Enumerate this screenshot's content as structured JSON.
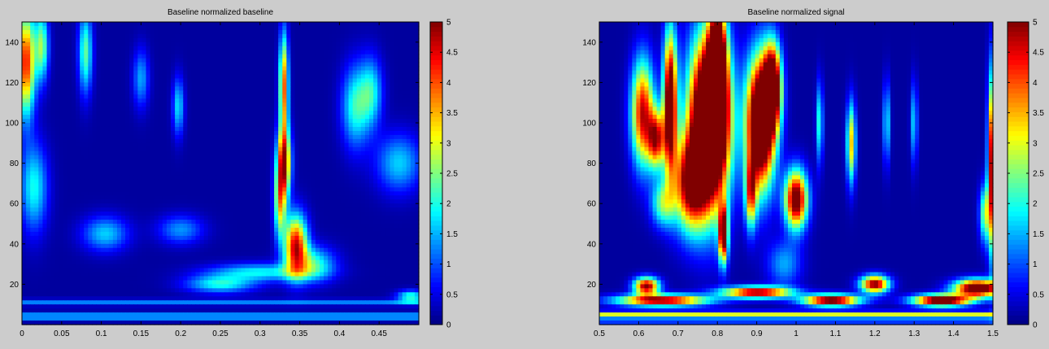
{
  "chart_data": [
    {
      "type": "heatmap",
      "title": "Baseline normalized baseline",
      "xlabel": "",
      "ylabel": "",
      "xlim": [
        0,
        0.5
      ],
      "ylim": [
        0,
        150
      ],
      "xticks": [
        0,
        0.05,
        0.1,
        0.15,
        0.2,
        0.25,
        0.3,
        0.35,
        0.4,
        0.45
      ],
      "xtick_labels": [
        "0",
        "0.05",
        "0.1",
        "0.15",
        "0.2",
        "0.25",
        "0.3",
        "0.35",
        "0.4",
        "0.45"
      ],
      "yticks": [
        20,
        40,
        60,
        80,
        100,
        120,
        140
      ],
      "ytick_labels": [
        "20",
        "40",
        "60",
        "80",
        "100",
        "120",
        "140"
      ],
      "clim": [
        0,
        5
      ],
      "colormap": "jet",
      "colorbar_ticks": [
        0,
        0.5,
        1,
        1.5,
        2,
        2.5,
        3,
        3.5,
        4,
        4.5,
        5
      ],
      "colorbar_tick_labels": [
        "0",
        "0.5",
        "1",
        "1.5",
        "2",
        "2.5",
        "3",
        "3.5",
        "4",
        "4.5",
        "5"
      ],
      "features": [
        {
          "x": 0.005,
          "y": 130,
          "sx": 0.008,
          "sy": 18,
          "v": 4.2
        },
        {
          "x": 0.025,
          "y": 138,
          "sx": 0.006,
          "sy": 12,
          "v": 2.4
        },
        {
          "x": 0.08,
          "y": 135,
          "sx": 0.006,
          "sy": 14,
          "v": 2.2
        },
        {
          "x": 0.015,
          "y": 68,
          "sx": 0.012,
          "sy": 15,
          "v": 1.8
        },
        {
          "x": 0.105,
          "y": 45,
          "sx": 0.02,
          "sy": 6,
          "v": 1.5
        },
        {
          "x": 0.2,
          "y": 47,
          "sx": 0.02,
          "sy": 5,
          "v": 1.2
        },
        {
          "x": 0.15,
          "y": 122,
          "sx": 0.007,
          "sy": 10,
          "v": 1.3
        },
        {
          "x": 0.197,
          "y": 108,
          "sx": 0.005,
          "sy": 10,
          "v": 1.6
        },
        {
          "x": 0.33,
          "y": 80,
          "sx": 0.006,
          "sy": 12,
          "v": 4.5
        },
        {
          "x": 0.33,
          "y": 118,
          "sx": 0.004,
          "sy": 18,
          "v": 3.8
        },
        {
          "x": 0.345,
          "y": 40,
          "sx": 0.01,
          "sy": 10,
          "v": 4.3
        },
        {
          "x": 0.325,
          "y": 60,
          "sx": 0.005,
          "sy": 12,
          "v": 2.8
        },
        {
          "x": 0.3,
          "y": 26,
          "sx": 0.045,
          "sy": 3,
          "v": 1.7
        },
        {
          "x": 0.25,
          "y": 20,
          "sx": 0.03,
          "sy": 3,
          "v": 1.8
        },
        {
          "x": 0.365,
          "y": 30,
          "sx": 0.02,
          "sy": 6,
          "v": 2.0
        },
        {
          "x": 0.42,
          "y": 108,
          "sx": 0.012,
          "sy": 14,
          "v": 1.9
        },
        {
          "x": 0.44,
          "y": 115,
          "sx": 0.01,
          "sy": 12,
          "v": 1.7
        },
        {
          "x": 0.475,
          "y": 80,
          "sx": 0.02,
          "sy": 10,
          "v": 1.5
        },
        {
          "x": 0.49,
          "y": 14,
          "sx": 0.012,
          "sy": 2,
          "v": 2.0
        }
      ],
      "bands": [
        {
          "y": 4,
          "s": 1.2,
          "v": 1.6
        },
        {
          "y": 11,
          "s": 1.0,
          "v": 1.1
        }
      ]
    },
    {
      "type": "heatmap",
      "title": "Baseline normalized signal",
      "xlabel": "",
      "ylabel": "",
      "xlim": [
        0.5,
        1.5
      ],
      "ylim": [
        0,
        150
      ],
      "xticks": [
        0.5,
        0.6,
        0.7,
        0.8,
        0.9,
        1,
        1.1,
        1.2,
        1.3,
        1.4,
        1.5
      ],
      "xtick_labels": [
        "0.5",
        "0.6",
        "0.7",
        "0.8",
        "0.9",
        "1",
        "1.1",
        "1.2",
        "1.3",
        "1.4",
        "1.5"
      ],
      "yticks": [
        20,
        40,
        60,
        80,
        100,
        120,
        140
      ],
      "ytick_labels": [
        "20",
        "40",
        "60",
        "80",
        "100",
        "120",
        "140"
      ],
      "clim": [
        0,
        5
      ],
      "colormap": "jet",
      "colorbar_ticks": [
        0,
        0.5,
        1,
        1.5,
        2,
        2.5,
        3,
        3.5,
        4,
        4.5,
        5
      ],
      "colorbar_tick_labels": [
        "0",
        "0.5",
        "1",
        "1.5",
        "2",
        "2.5",
        "3",
        "3.5",
        "4",
        "4.5",
        "5"
      ],
      "features": [
        {
          "x": 0.78,
          "y": 100,
          "sx": 0.035,
          "sy": 28,
          "v": 9.0
        },
        {
          "x": 0.8,
          "y": 125,
          "sx": 0.015,
          "sy": 22,
          "v": 7.0
        },
        {
          "x": 0.91,
          "y": 100,
          "sx": 0.025,
          "sy": 22,
          "v": 7.5
        },
        {
          "x": 0.94,
          "y": 118,
          "sx": 0.015,
          "sy": 14,
          "v": 6.0
        },
        {
          "x": 0.68,
          "y": 110,
          "sx": 0.012,
          "sy": 24,
          "v": 6.0
        },
        {
          "x": 0.61,
          "y": 105,
          "sx": 0.02,
          "sy": 18,
          "v": 4.5
        },
        {
          "x": 0.645,
          "y": 92,
          "sx": 0.015,
          "sy": 10,
          "v": 4.2
        },
        {
          "x": 0.73,
          "y": 70,
          "sx": 0.03,
          "sy": 16,
          "v": 4.5
        },
        {
          "x": 0.815,
          "y": 45,
          "sx": 0.008,
          "sy": 10,
          "v": 5.5
        },
        {
          "x": 0.885,
          "y": 65,
          "sx": 0.01,
          "sy": 12,
          "v": 3.5
        },
        {
          "x": 1.0,
          "y": 62,
          "sx": 0.02,
          "sy": 10,
          "v": 5.5
        },
        {
          "x": 0.97,
          "y": 30,
          "sx": 0.03,
          "sy": 8,
          "v": 1.3
        },
        {
          "x": 0.66,
          "y": 60,
          "sx": 0.02,
          "sy": 8,
          "v": 2.2
        },
        {
          "x": 1.14,
          "y": 90,
          "sx": 0.008,
          "sy": 14,
          "v": 3.2
        },
        {
          "x": 1.06,
          "y": 100,
          "sx": 0.006,
          "sy": 14,
          "v": 2.0
        },
        {
          "x": 1.23,
          "y": 100,
          "sx": 0.006,
          "sy": 14,
          "v": 1.8
        },
        {
          "x": 1.3,
          "y": 100,
          "sx": 0.006,
          "sy": 14,
          "v": 1.6
        },
        {
          "x": 1.2,
          "y": 20,
          "sx": 0.025,
          "sy": 3,
          "v": 5.0
        },
        {
          "x": 0.62,
          "y": 19,
          "sx": 0.022,
          "sy": 3,
          "v": 5.0
        },
        {
          "x": 1.46,
          "y": 18,
          "sx": 0.04,
          "sy": 3,
          "v": 6.0
        },
        {
          "x": 1.37,
          "y": 12,
          "sx": 0.05,
          "sy": 2,
          "v": 6.0
        },
        {
          "x": 0.9,
          "y": 16,
          "sx": 0.06,
          "sy": 2,
          "v": 5.0
        },
        {
          "x": 1.09,
          "y": 12,
          "sx": 0.05,
          "sy": 2,
          "v": 5.5
        },
        {
          "x": 0.66,
          "y": 12,
          "sx": 0.08,
          "sy": 2,
          "v": 5.0
        },
        {
          "x": 1.495,
          "y": 80,
          "sx": 0.006,
          "sy": 30,
          "v": 4.5
        },
        {
          "x": 1.48,
          "y": 55,
          "sx": 0.01,
          "sy": 10,
          "v": 2.5
        }
      ],
      "bands": [
        {
          "y": 5,
          "s": 1.0,
          "v": 2.8
        },
        {
          "y": 2,
          "s": 0.8,
          "v": 1.6
        }
      ]
    }
  ]
}
